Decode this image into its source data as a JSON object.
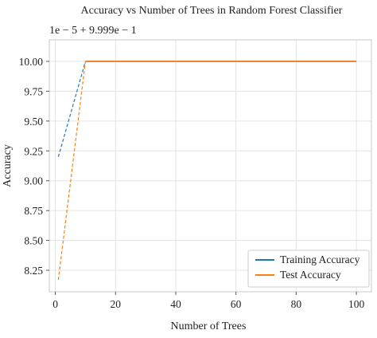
{
  "chart_data": {
    "type": "line",
    "title": "Accuracy vs Number of Trees in Random Forest Classifier",
    "xlabel": "Number of Trees",
    "ylabel": "Accuracy",
    "offset_text": "1e − 5 + 9.999e − 1",
    "xlim": [
      -2,
      105
    ],
    "ylim": [
      8.07,
      10.18
    ],
    "x_ticks": [
      0,
      20,
      40,
      60,
      80,
      100
    ],
    "x_tick_labels": [
      "0",
      "20",
      "40",
      "60",
      "80",
      "100"
    ],
    "y_ticks": [
      8.25,
      8.5,
      8.75,
      9.0,
      9.25,
      9.5,
      9.75,
      10.0
    ],
    "y_tick_labels": [
      "8.25",
      "8.50",
      "8.75",
      "9.00",
      "9.25",
      "9.50",
      "9.75",
      "10.00"
    ],
    "grid": true,
    "legend_position": "bottom-right",
    "series": [
      {
        "name": "Training Accuracy",
        "color": "#1f77b4",
        "x": [
          1,
          10,
          100
        ],
        "y": [
          9.2,
          10.0,
          10.0
        ]
      },
      {
        "name": "Test Accuracy",
        "color": "#ff7f0e",
        "x": [
          1,
          10,
          100
        ],
        "y": [
          8.17,
          10.0,
          10.0
        ]
      }
    ]
  }
}
